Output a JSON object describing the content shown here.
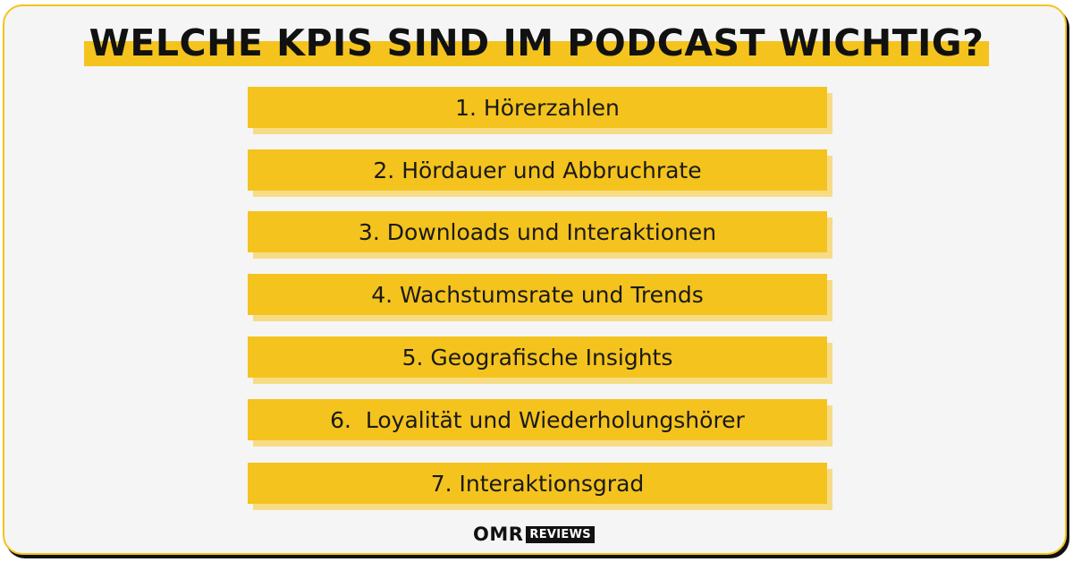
{
  "title": "WELCHE KPIS SIND IM PODCAST WICHTIG?",
  "items": [
    "1. Hörerzahlen",
    "2. Hördauer und Abbruchrate",
    "3. Downloads und Interaktionen",
    "4. Wachstumsrate und Trends",
    "5. Geografische Insights",
    "6.  Loyalität und Wiederholungshörer",
    "7. Interaktionsgrad"
  ],
  "logo": {
    "name": "OMR",
    "badge": "REVIEWS"
  },
  "colors": {
    "accent": "#f4c31d",
    "accent_shadow": "#f7dc85",
    "background": "#f5f5f5",
    "text": "#111111"
  }
}
